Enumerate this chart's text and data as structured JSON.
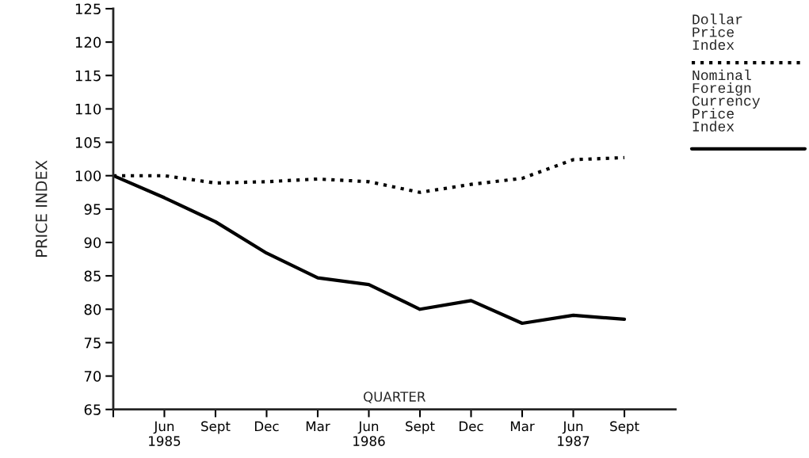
{
  "chart_data": {
    "type": "line",
    "xlabel": "QUARTER",
    "ylabel": "PRICE INDEX",
    "categories": [
      null,
      "Jun\n1985",
      "Sept",
      "Dec",
      "Mar",
      "Jun\n1986",
      "Sept",
      "Dec",
      "Mar",
      "Jun\n1987",
      "Sept"
    ],
    "series": [
      {
        "name": "Dollar\nPrice\nIndex",
        "color": "#000000",
        "line_style": "dotted",
        "values": [
          100,
          100,
          98.9,
          99.1,
          99.5,
          99.1,
          97.5,
          98.7,
          99.6,
          102.4,
          102.7
        ]
      },
      {
        "name": "Nominal\nForeign\nCurrency\nPrice\nIndex",
        "color": "#000000",
        "line_style": "solid",
        "values": [
          100,
          96.7,
          93.1,
          88.4,
          84.7,
          83.7,
          80.0,
          81.3,
          77.9,
          79.1,
          78.5
        ]
      }
    ],
    "ylim": [
      65,
      125
    ],
    "yticks": [
      65,
      70,
      75,
      80,
      85,
      90,
      95,
      100,
      105,
      110,
      115,
      120,
      125
    ],
    "grid": false,
    "legend": "top right",
    "marker": "none"
  }
}
